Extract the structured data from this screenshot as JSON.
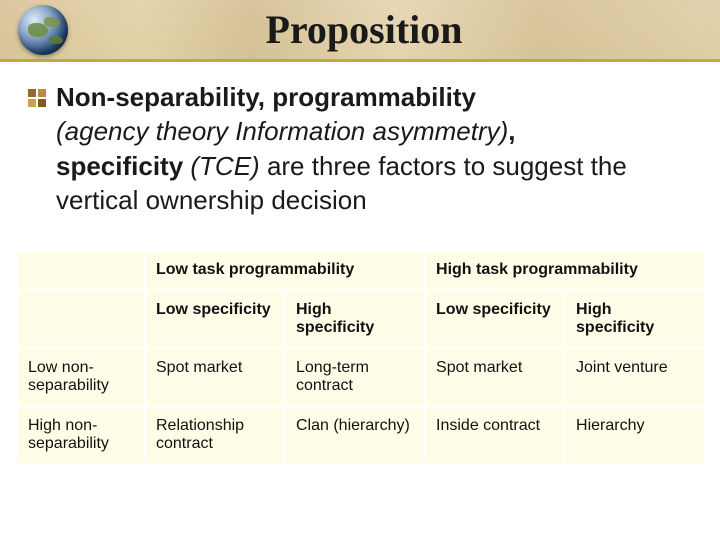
{
  "title": "Proposition",
  "body": {
    "p1_bold": "Non-separability, programmability",
    "p2_italic": "(agency theory Information asymmetry)",
    "p2_comma": ",",
    "p3_bold": "specificity",
    "p3_italic": " (TCE) ",
    "p3_rest": "are three factors to suggest the vertical ownership decision"
  },
  "table": {
    "top_headers": [
      "Low task programmability",
      "High task programmability"
    ],
    "sub_headers": [
      "Low specificity",
      "High specificity",
      "Low specificity",
      "High specificity"
    ],
    "rows": [
      {
        "label": "Low non-separability",
        "cells": [
          "Spot market",
          "Long-term contract",
          "Spot market",
          "Joint venture"
        ]
      },
      {
        "label": "High non-separability",
        "cells": [
          "Relationship contract",
          "Clan (hierarchy)",
          "Inside contract",
          "Hierarchy"
        ]
      }
    ]
  },
  "style": {
    "title_font": "Times New Roman",
    "title_fontsize_pt": 40,
    "body_font": "Verdana",
    "body_fontsize_pt": 26,
    "table_fontsize_pt": 16,
    "table_cell_bg": "#fefde8",
    "table_border_color": "#ffffff",
    "title_band_border": "#c9a24a",
    "bullet_colors": [
      "#8f6b2f",
      "#b58c40",
      "#c7a156",
      "#7d5b23"
    ],
    "page_bg": "#ffffff",
    "text_color": "#1a1a1a"
  }
}
